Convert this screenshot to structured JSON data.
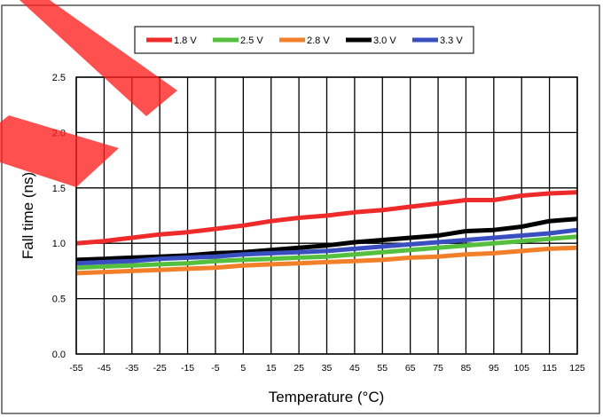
{
  "chart_data": {
    "type": "line",
    "title": "",
    "xlabel": "Temperature (°C)",
    "ylabel": "Fall time (ns)",
    "x": [
      -55,
      -45,
      -35,
      -25,
      -15,
      -5,
      5,
      15,
      25,
      35,
      45,
      55,
      65,
      75,
      85,
      95,
      105,
      115,
      125
    ],
    "x_tick_labels": [
      "-55",
      "-45",
      "-35",
      "-25",
      "-15",
      "-5",
      "5",
      "15",
      "25",
      "35",
      "45",
      "55",
      "65",
      "75",
      "85",
      "95",
      "105",
      "115",
      "125"
    ],
    "y_tick_labels": [
      "0.0",
      "0.5",
      "1.0",
      "1.5",
      "2.0",
      "2.5"
    ],
    "xlim": [
      -55,
      125
    ],
    "ylim": [
      0,
      2.5
    ],
    "grid": true,
    "legend_position": "top-center",
    "series": [
      {
        "name": "1.8 V",
        "color": "#ee2a2a",
        "values": [
          1.0,
          1.02,
          1.05,
          1.08,
          1.1,
          1.13,
          1.16,
          1.2,
          1.23,
          1.25,
          1.28,
          1.3,
          1.33,
          1.36,
          1.39,
          1.39,
          1.43,
          1.45,
          1.46
        ]
      },
      {
        "name": "2.5 V",
        "color": "#55c040",
        "values": [
          0.78,
          0.79,
          0.8,
          0.81,
          0.82,
          0.84,
          0.85,
          0.86,
          0.87,
          0.88,
          0.9,
          0.92,
          0.94,
          0.96,
          0.98,
          1.0,
          1.02,
          1.04,
          1.06
        ]
      },
      {
        "name": "2.8 V",
        "color": "#f27f2a",
        "values": [
          0.73,
          0.74,
          0.75,
          0.76,
          0.77,
          0.78,
          0.8,
          0.81,
          0.82,
          0.83,
          0.84,
          0.85,
          0.87,
          0.88,
          0.9,
          0.91,
          0.93,
          0.95,
          0.96
        ]
      },
      {
        "name": "3.0 V",
        "color": "#000000",
        "values": [
          0.85,
          0.86,
          0.87,
          0.88,
          0.89,
          0.91,
          0.92,
          0.94,
          0.96,
          0.98,
          1.01,
          1.03,
          1.05,
          1.07,
          1.11,
          1.12,
          1.15,
          1.2,
          1.22
        ]
      },
      {
        "name": "3.3 V",
        "color": "#3a4fbf",
        "values": [
          0.82,
          0.83,
          0.84,
          0.86,
          0.87,
          0.88,
          0.9,
          0.91,
          0.92,
          0.93,
          0.95,
          0.97,
          0.99,
          1.01,
          1.03,
          1.05,
          1.07,
          1.09,
          1.12
        ]
      }
    ]
  }
}
